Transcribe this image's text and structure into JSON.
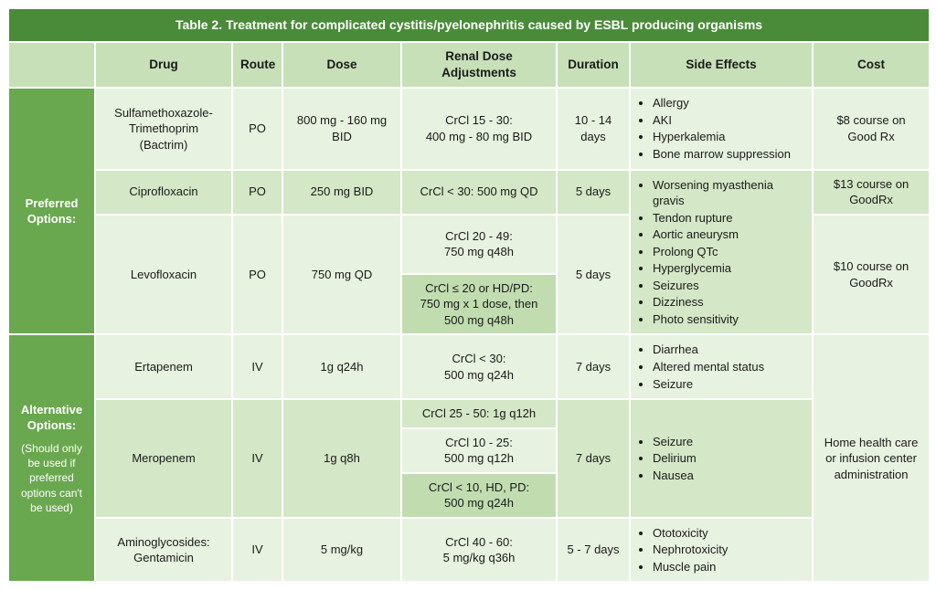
{
  "title": "Table 2. Treatment for complicated cystitis/pyelonephritis caused by ESBL producing organisms",
  "headers": {
    "cat": "",
    "drug": "Drug",
    "route": "Route",
    "dose": "Dose",
    "renal": "Renal Dose Adjustments",
    "duration": "Duration",
    "side_effects": "Side Effects",
    "cost": "Cost"
  },
  "colors": {
    "title_bg": "#4a8b3a",
    "header_bg": "#c7e0b8",
    "rowhead_bg": "#6aa84f",
    "light": "#e8f2e0",
    "mid": "#d4e7c6",
    "dark": "#c1ddb0",
    "border": "#ffffff",
    "text": "#1a1a1a",
    "head_text": "#ffffff"
  },
  "categories": {
    "preferred": {
      "label": "Preferred Options:"
    },
    "alternative": {
      "label": "Alternative Options:",
      "sub": "(Should only be used if preferred options can't be used)"
    }
  },
  "drugs": {
    "bactrim": {
      "name": "Sulfamethoxazole-Trimethoprim (Bactrim)",
      "route": "PO",
      "dose": "800 mg - 160 mg BID",
      "renal": "CrCl 15 - 30:\n400 mg - 80 mg BID",
      "duration": "10 - 14 days",
      "side_effects": [
        "Allergy",
        "AKI",
        "Hyperkalemia",
        "Bone marrow suppression"
      ],
      "cost": "$8 course on Good Rx"
    },
    "cipro": {
      "name": "Ciprofloxacin",
      "route": "PO",
      "dose": "250 mg BID",
      "renal": "CrCl < 30: 500 mg QD",
      "duration": "5 days",
      "cost": "$13 course on GoodRx"
    },
    "levo": {
      "name": "Levofloxacin",
      "route": "PO",
      "dose": "750 mg QD",
      "renal_a": "CrCl 20 - 49:\n750 mg q48h",
      "renal_b": "CrCl ≤ 20 or HD/PD:\n750 mg x 1 dose, then\n500 mg q48h",
      "duration": "5 days",
      "cost": "$10 course on GoodRx"
    },
    "fq_shared_se": [
      "Worsening myasthenia gravis",
      "Tendon rupture",
      "Aortic aneurysm",
      "Prolong QTc",
      "Hyperglycemia",
      "Seizures",
      "Dizziness",
      "Photo sensitivity"
    ],
    "erta": {
      "name": "Ertapenem",
      "route": "IV",
      "dose": "1g q24h",
      "renal": "CrCl < 30:\n500 mg q24h",
      "duration": "7 days",
      "side_effects": [
        "Diarrhea",
        "Altered mental status",
        "Seizure"
      ]
    },
    "mero": {
      "name": "Meropenem",
      "route": "IV",
      "dose": "1g q8h",
      "renal_a": "CrCl 25 - 50: 1g q12h",
      "renal_b": "CrCl 10 - 25:\n500 mg q12h",
      "renal_c": "CrCl < 10, HD, PD:\n500 mg q24h",
      "duration": "7 days",
      "side_effects": [
        "Seizure",
        "Delirium",
        "Nausea"
      ]
    },
    "genta": {
      "name": "Aminoglycosides: Gentamicin",
      "route": "IV",
      "dose": "5 mg/kg",
      "renal": "CrCl 40 - 60:\n5 mg/kg q36h",
      "duration": "5 - 7 days",
      "side_effects": [
        "Ototoxicity",
        "Nephrotoxicity",
        "Muscle pain"
      ]
    },
    "alt_cost": "Home health care or infusion center administration"
  }
}
